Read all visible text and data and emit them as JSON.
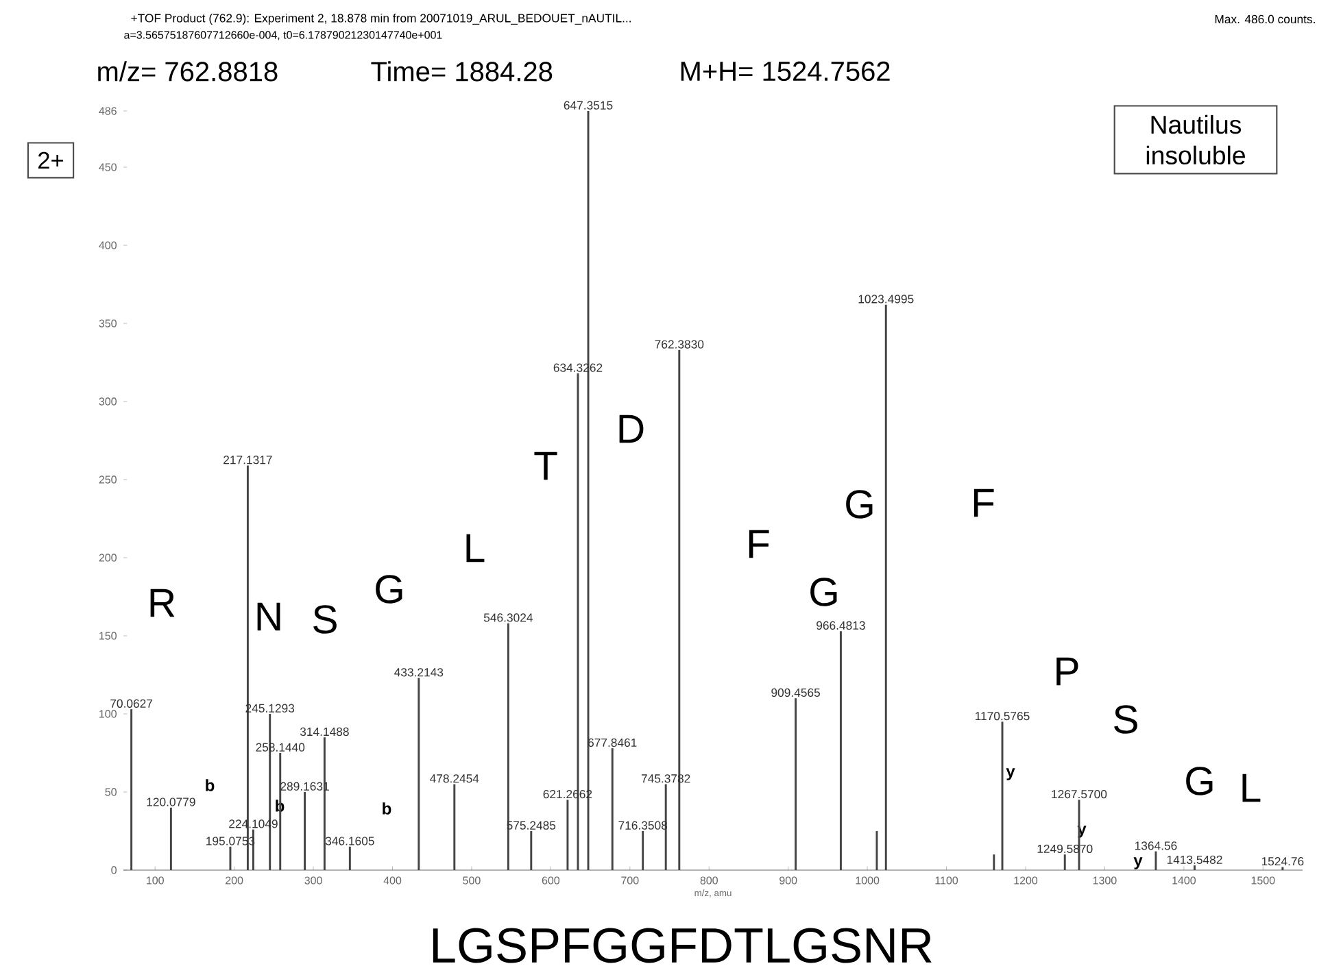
{
  "chart_data": {
    "type": "bar",
    "title": "+TOF Product (762.9): Experiment 2, 18.878 min from 20071019_ARUL_BEDOUET_nAUTIL...",
    "subtitle": "a=3.56575187607712660e-004, t0=6.17879021230147740e+001",
    "xlabel": "m/z, amu",
    "color": "#444444",
    "x": [
      70.0627,
      120.0779,
      195.0753,
      217.1317,
      224.1049,
      245.1293,
      258.144,
      289.1631,
      314.1488,
      346.1605,
      433.2143,
      478.2454,
      546.3024,
      575.2485,
      621.2662,
      634.3262,
      647.3515,
      677.8461,
      716.3508,
      745.3782,
      762.383,
      909.4565,
      966.4813,
      1012,
      1023.4995,
      1160,
      1170.5765,
      1249.587,
      1267.57,
      1364.56,
      1413.5482,
      1524.76
    ],
    "values": [
      103,
      40,
      15,
      259,
      26,
      100,
      75,
      50,
      85,
      15,
      123,
      55,
      158,
      25,
      45,
      318,
      486,
      78,
      25,
      55,
      333,
      110,
      153,
      25,
      362,
      10,
      95,
      10,
      45,
      12,
      3,
      2
    ],
    "xlim": [
      60,
      1550
    ],
    "ylim": [
      0,
      486
    ],
    "xticks": [
      100,
      200,
      300,
      400,
      500,
      600,
      700,
      800,
      900,
      1000,
      1100,
      1200,
      1300,
      1400,
      1500
    ],
    "yticks": [
      0,
      50,
      100,
      150,
      200,
      250,
      300,
      350,
      400,
      450,
      486
    ],
    "annotations": [
      "m/z= 762.8818",
      "Time= 1884.28",
      "M+H= 1524.7562",
      "Max. 486.0 counts.",
      "2+",
      "Nautilus insoluble",
      "LGSPFGGFDTLGSNR",
      "R",
      "N",
      "S",
      "G",
      "L",
      "T",
      "D",
      "F",
      "G",
      "G",
      "F",
      "P",
      "S",
      "G",
      "L",
      "b",
      "b",
      "b",
      "y",
      "y",
      "y",
      {
        "text": "70.0627",
        "x": 70.0627,
        "y": 103
      },
      {
        "text": "120.0779",
        "x": 120.0779,
        "y": 40
      },
      {
        "text": "195.0753",
        "x": 195.0753,
        "y": 15
      },
      {
        "text": "217.1317",
        "x": 217.1317,
        "y": 259
      },
      {
        "text": "224.1049",
        "x": 224.1049,
        "y": 26
      },
      {
        "text": "245.1293",
        "x": 245.1293,
        "y": 100
      },
      {
        "text": "258.1440",
        "x": 258.144,
        "y": 75
      },
      {
        "text": "289.1631",
        "x": 289.1631,
        "y": 50
      },
      {
        "text": "314.1488",
        "x": 314.1488,
        "y": 85
      },
      {
        "text": "346.1605",
        "x": 346.1605,
        "y": 15
      },
      {
        "text": "433.2143",
        "x": 433.2143,
        "y": 123
      },
      {
        "text": "478.2454",
        "x": 478.2454,
        "y": 55
      },
      {
        "text": "546.3024",
        "x": 546.3024,
        "y": 158
      },
      {
        "text": "575.2485",
        "x": 575.2485,
        "y": 25
      },
      {
        "text": "621.2662",
        "x": 621.2662,
        "y": 45
      },
      {
        "text": "634.3262",
        "x": 634.3262,
        "y": 318
      },
      {
        "text": "647.3515",
        "x": 647.3515,
        "y": 486
      },
      {
        "text": "677.8461",
        "x": 677.8461,
        "y": 78
      },
      {
        "text": "716.3508",
        "x": 716.3508,
        "y": 25
      },
      {
        "text": "745.3782",
        "x": 745.3782,
        "y": 55
      },
      {
        "text": "762.3830",
        "x": 762.383,
        "y": 333
      },
      {
        "text": "909.4565",
        "x": 909.4565,
        "y": 110
      },
      {
        "text": "966.4813",
        "x": 966.4813,
        "y": 153
      },
      {
        "text": "1023.4995",
        "x": 1023.4995,
        "y": 362
      },
      {
        "text": "1170.5765",
        "x": 1170.5765,
        "y": 95
      },
      {
        "text": "1249.5870",
        "x": 1249.587,
        "y": 10
      },
      {
        "text": "1267.5700",
        "x": 1267.57,
        "y": 45
      },
      {
        "text": "1364.56",
        "x": 1364.56,
        "y": 12
      },
      {
        "text": "1413.5482",
        "x": 1413.5482,
        "y": 3
      },
      {
        "text": "1524.76",
        "x": 1524.76,
        "y": 2
      }
    ]
  }
}
